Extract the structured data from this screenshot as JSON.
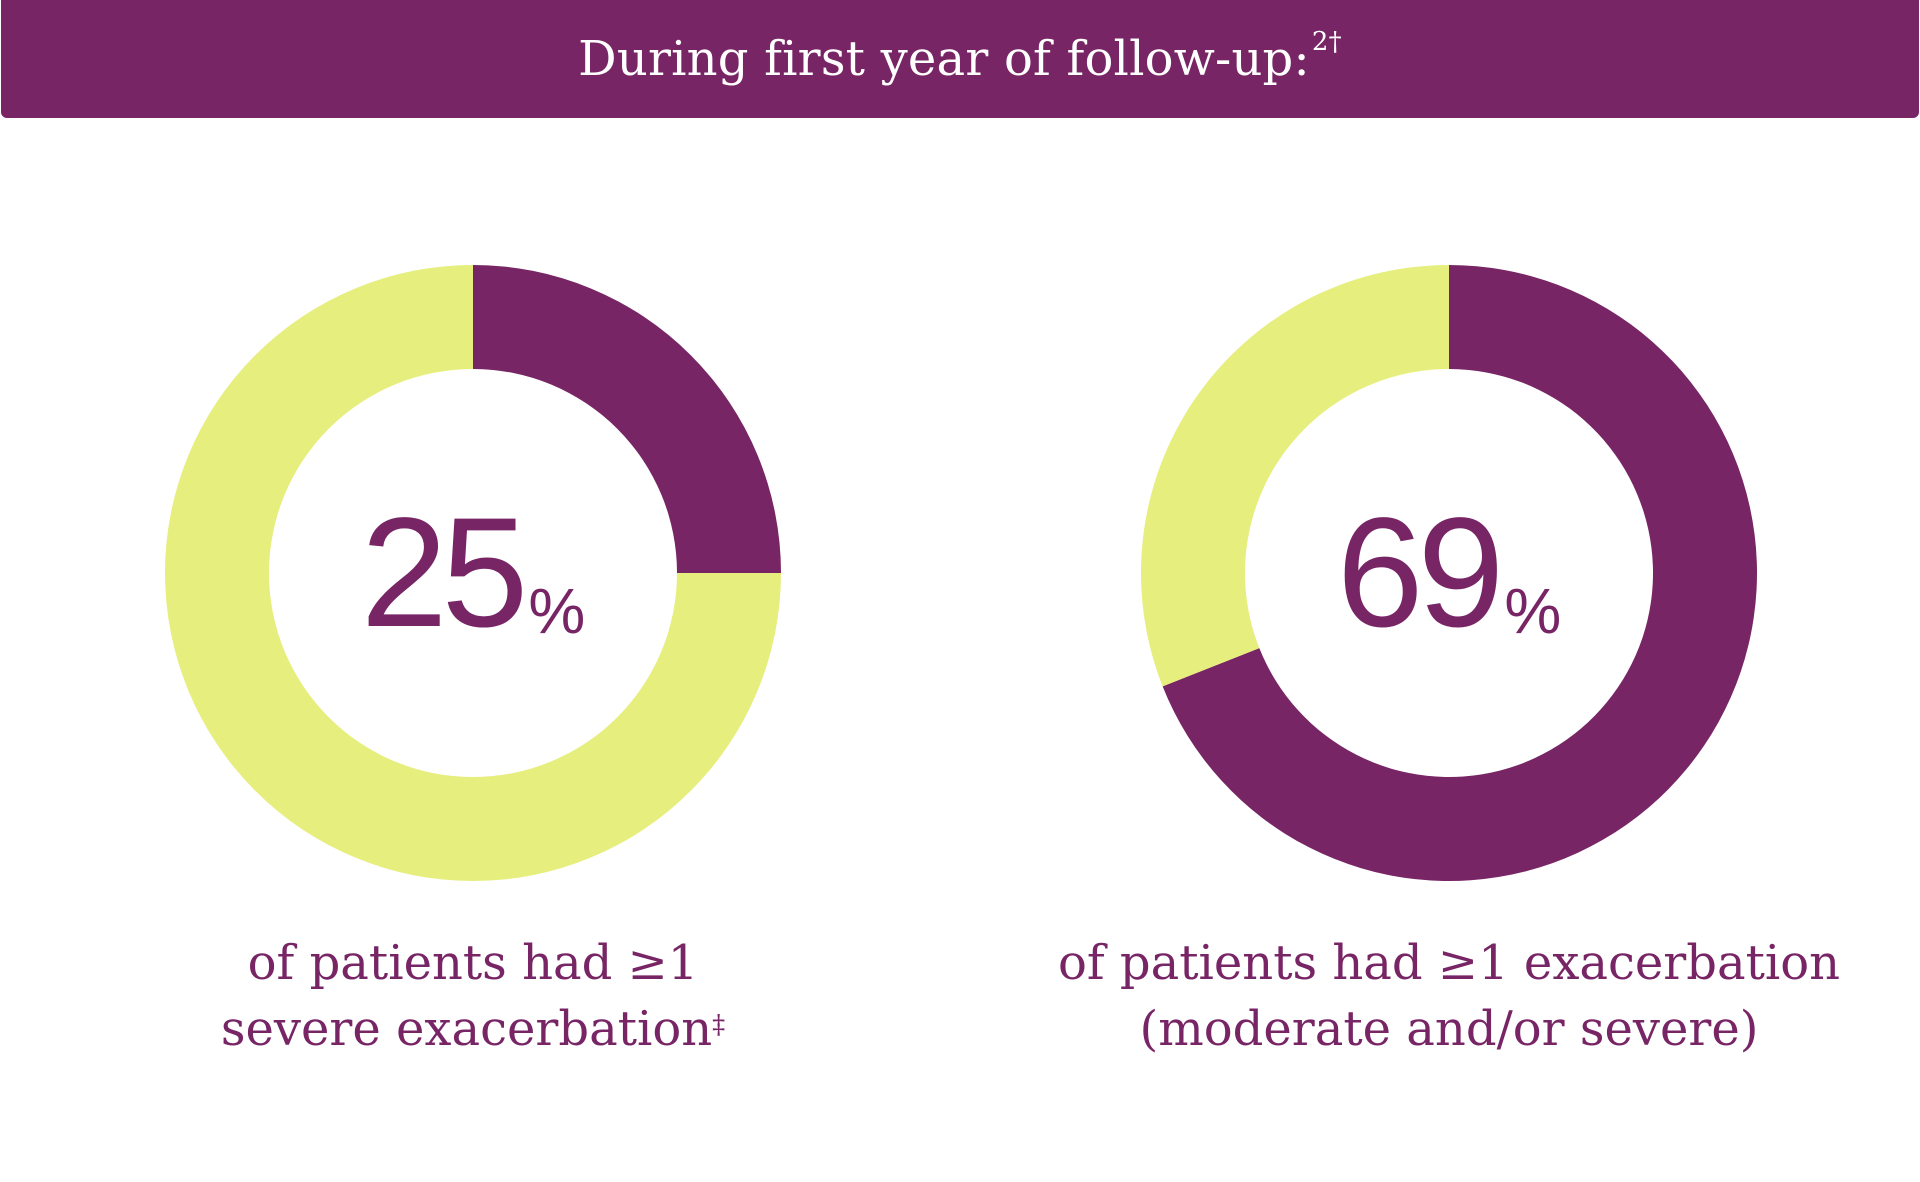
{
  "header": {
    "title": "During first year of follow-up:",
    "title_superscript": "2†"
  },
  "colors": {
    "primary": "#782566",
    "secondary": "#E6EE7E",
    "banner_text": "#FFFFFF"
  },
  "chart_data": [
    {
      "type": "pie",
      "style": "donut",
      "slices": [
        {
          "label": "had ≥1 severe exacerbation",
          "value": 25,
          "color": "#782566"
        },
        {
          "label": "remainder",
          "value": 75,
          "color": "#E6EE7E"
        }
      ],
      "center_value": "25",
      "center_unit": "%",
      "caption_lines": [
        "of patients had ≥1",
        "severe exacerbation"
      ],
      "caption_superscript": "‡"
    },
    {
      "type": "pie",
      "style": "donut",
      "slices": [
        {
          "label": "had ≥1 exacerbation (moderate and/or severe)",
          "value": 69,
          "color": "#782566"
        },
        {
          "label": "remainder",
          "value": 31,
          "color": "#E6EE7E"
        }
      ],
      "center_value": "69",
      "center_unit": "%",
      "caption_lines": [
        "of patients had ≥1 exacerbation",
        "(moderate and/or severe)"
      ],
      "caption_superscript": ""
    }
  ]
}
